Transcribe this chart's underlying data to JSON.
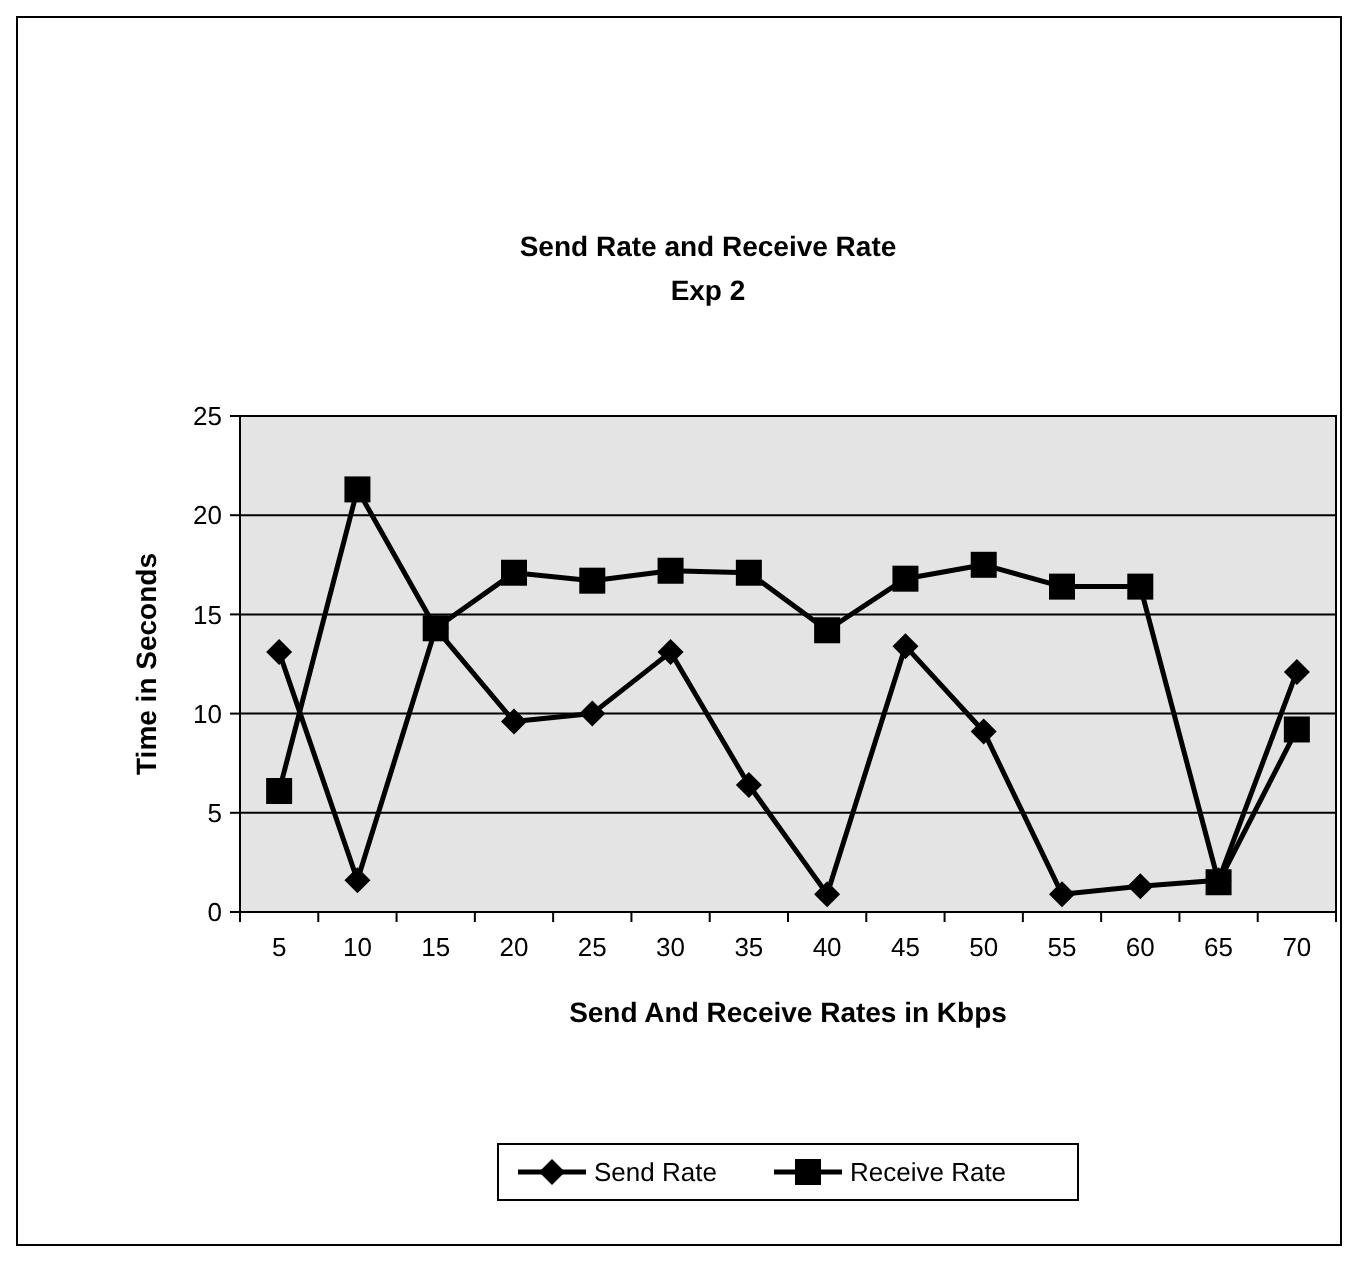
{
  "chart_data": {
    "type": "line",
    "title": "Send Rate and Receive Rate",
    "subtitle": "Exp 2",
    "xlabel": "Send And Receive Rates in Kbps",
    "ylabel": "Time in Seconds",
    "categories": [
      "5",
      "10",
      "15",
      "20",
      "25",
      "30",
      "35",
      "40",
      "45",
      "50",
      "55",
      "60",
      "65",
      "70"
    ],
    "series": [
      {
        "name": "Send Rate",
        "color": "#000000",
        "marker": "diamond",
        "values": [
          13.1,
          1.6,
          14.3,
          9.6,
          10,
          13.1,
          6.4,
          0.9,
          13.4,
          9.1,
          0.9,
          1.3,
          1.6,
          12.1
        ]
      },
      {
        "name": "Receive Rate",
        "color": "#000000",
        "marker": "square",
        "values": [
          6.1,
          21.3,
          14.3,
          17.1,
          16.7,
          17.2,
          17.1,
          14.2,
          16.8,
          17.5,
          16.4,
          16.4,
          1.5,
          9.2
        ]
      }
    ],
    "ylim": [
      0,
      25
    ],
    "yticks": [
      0,
      5,
      10,
      15,
      20,
      25
    ],
    "grid": "y",
    "legend": "bottom"
  }
}
